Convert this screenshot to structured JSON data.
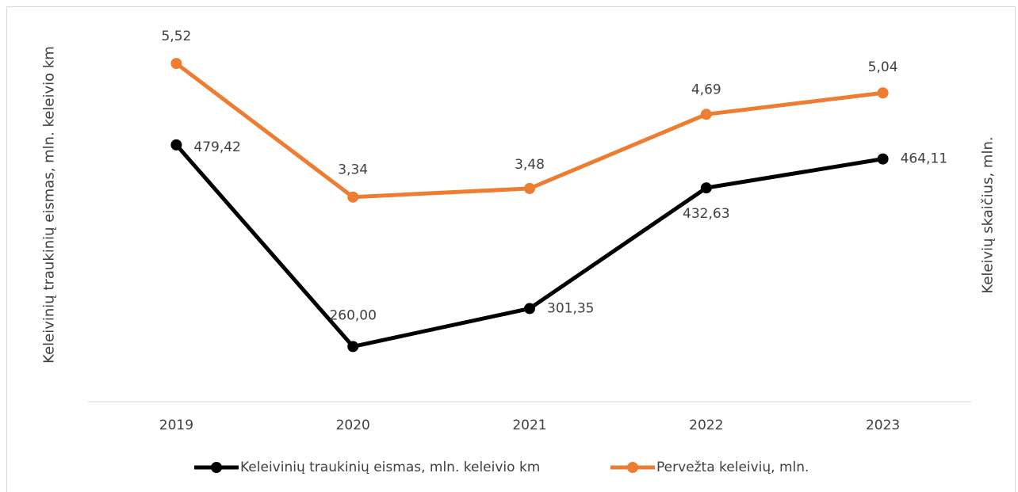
{
  "chart_data": {
    "type": "line",
    "categories": [
      "2019",
      "2020",
      "2021",
      "2022",
      "2023"
    ],
    "y_label": "Keleivinių traukinių eismas, mln. keleivio km",
    "y2_label": "Keleivių skaičius, mln.",
    "ylim": [
      200,
      600
    ],
    "y2lim": [
      0,
      6
    ],
    "legend": "bottom",
    "series": [
      {
        "name": "Keleivinių traukinių eismas, mln. keleivio km",
        "color": "#000000",
        "values": [
          479.42,
          260.0,
          301.35,
          432.63,
          464.11
        ],
        "value_labels": [
          "479,42",
          "260,00",
          "301,35",
          "432,63",
          "464,11"
        ]
      },
      {
        "name": "Pervežta keleivių, mln.",
        "color": "#ed7d31",
        "axis": "y2",
        "values": [
          5.52,
          3.34,
          3.48,
          4.69,
          5.04
        ],
        "value_labels": [
          "5,52",
          "3,34",
          "3,48",
          "4,69",
          "5,04"
        ]
      }
    ]
  }
}
